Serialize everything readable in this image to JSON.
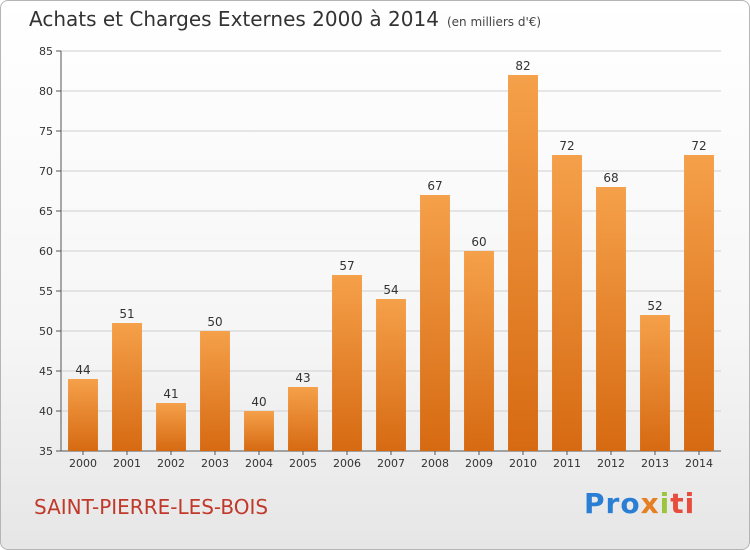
{
  "title": "Achats et Charges Externes 2000 à 2014",
  "unit": "(en milliers d'€)",
  "commune": "SAINT-PIERRE-LES-BOIS",
  "logo": {
    "p1": "Pro",
    "p2": "x",
    "p3": "i",
    "p4": "ti"
  },
  "colors": {
    "bar_top": "#f5a04a",
    "bar_bottom": "#d66a12",
    "commune": "#c0392b",
    "grid": "#cfcfcf"
  },
  "chart_data": {
    "type": "bar",
    "categories": [
      "2000",
      "2001",
      "2002",
      "2003",
      "2004",
      "2005",
      "2006",
      "2007",
      "2008",
      "2009",
      "2010",
      "2011",
      "2012",
      "2013",
      "2014"
    ],
    "values": [
      44,
      51,
      41,
      50,
      40,
      43,
      57,
      54,
      67,
      60,
      82,
      72,
      68,
      52,
      72
    ],
    "ylim": [
      35,
      85
    ],
    "yticks": [
      35,
      40,
      45,
      50,
      55,
      60,
      65,
      70,
      75,
      80,
      85
    ],
    "grid": true
  }
}
